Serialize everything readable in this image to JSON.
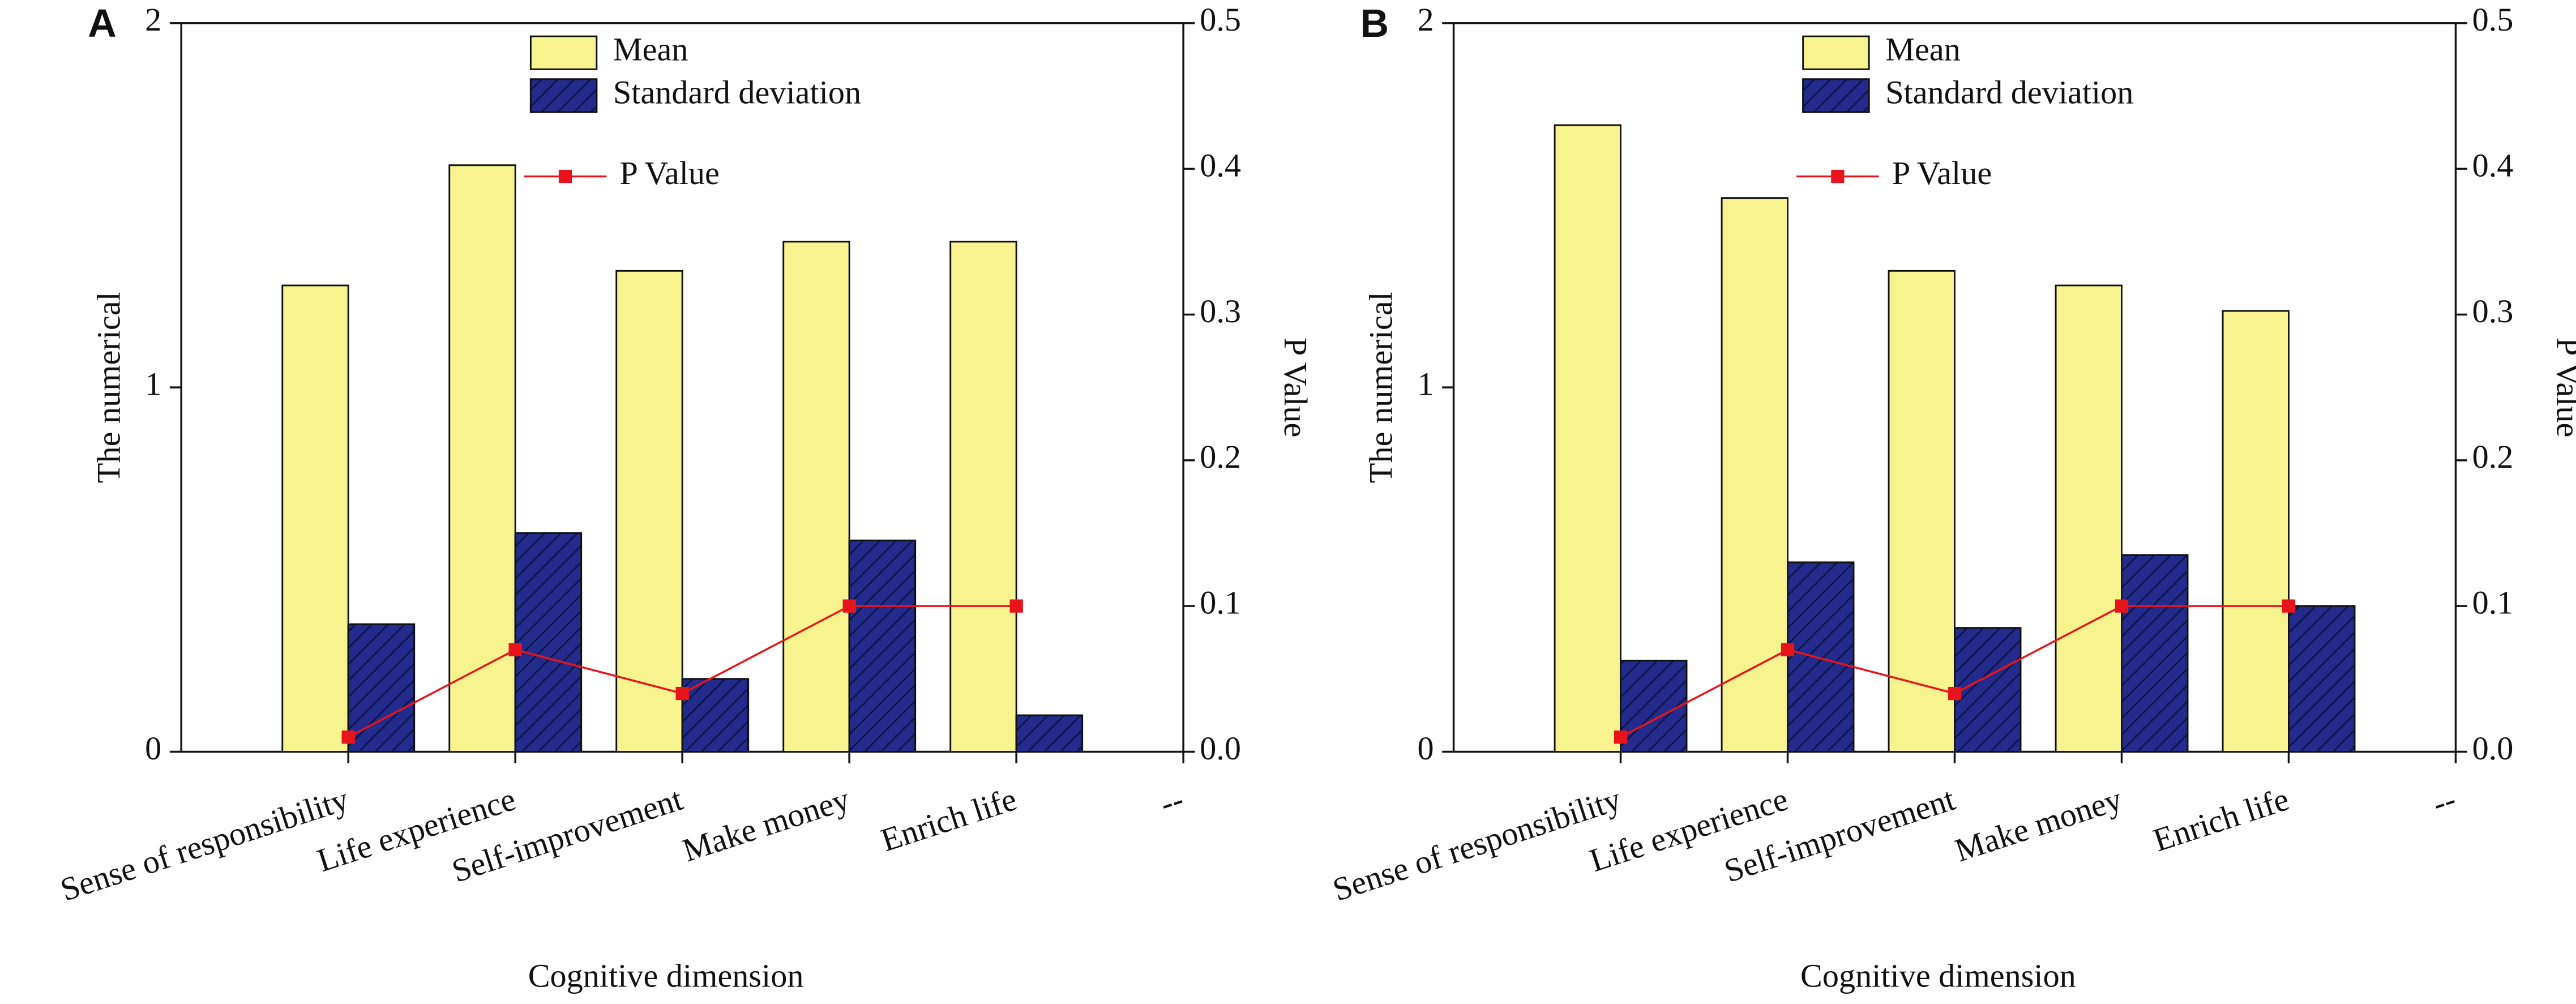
{
  "chart_data": [
    {
      "type": "bar",
      "label": "A",
      "xlabel": "Cognitive dimension",
      "ylabel": "The numerical",
      "y2label": "P Value",
      "categories": [
        "Sense of responsibility",
        "Life experience",
        "Self-improvement",
        "Make money",
        "Enrich life",
        "--"
      ],
      "series": [
        {
          "name": "Mean",
          "color": "#f7f38e",
          "values": [
            1.28,
            1.61,
            1.32,
            1.4,
            1.4,
            null
          ]
        },
        {
          "name": "Standard deviation",
          "color": "#232c8c",
          "hatch": true,
          "values": [
            0.35,
            0.6,
            0.2,
            0.58,
            0.1,
            null
          ]
        },
        {
          "name": "P Value",
          "type": "line",
          "axis": "y2",
          "color": "#e8141c",
          "values": [
            0.01,
            0.07,
            0.04,
            0.1,
            0.1,
            null
          ]
        }
      ],
      "ylim": [
        0,
        2
      ],
      "yticks": [
        0,
        1,
        2
      ],
      "y2lim": [
        0,
        0.5
      ],
      "y2ticks": [
        {
          "value": 0,
          "label": "0.0"
        },
        0.1,
        0.2,
        0.3,
        0.4,
        0.5
      ]
    },
    {
      "type": "bar",
      "label": "B",
      "xlabel": "Cognitive dimension",
      "ylabel": "The numerical",
      "y2label": "P Value",
      "categories": [
        "Sense of responsibility",
        "Life experience",
        "Self-improvement",
        "Make money",
        "Enrich life",
        "--"
      ],
      "series": [
        {
          "name": "Mean",
          "color": "#f7f38e",
          "values": [
            1.72,
            1.52,
            1.32,
            1.28,
            1.21,
            null
          ]
        },
        {
          "name": "Standard deviation",
          "color": "#232c8c",
          "hatch": true,
          "values": [
            0.25,
            0.52,
            0.34,
            0.54,
            0.4,
            null
          ]
        },
        {
          "name": "P Value",
          "type": "line",
          "axis": "y2",
          "color": "#e8141c",
          "values": [
            0.01,
            0.07,
            0.04,
            0.1,
            0.1,
            null
          ]
        }
      ],
      "ylim": [
        0,
        2
      ],
      "yticks": [
        0,
        1,
        2
      ],
      "y2lim": [
        0,
        0.5
      ],
      "y2ticks": [
        {
          "value": 0,
          "label": "0.0"
        },
        0.1,
        0.2,
        0.3,
        0.4,
        0.5
      ]
    }
  ]
}
